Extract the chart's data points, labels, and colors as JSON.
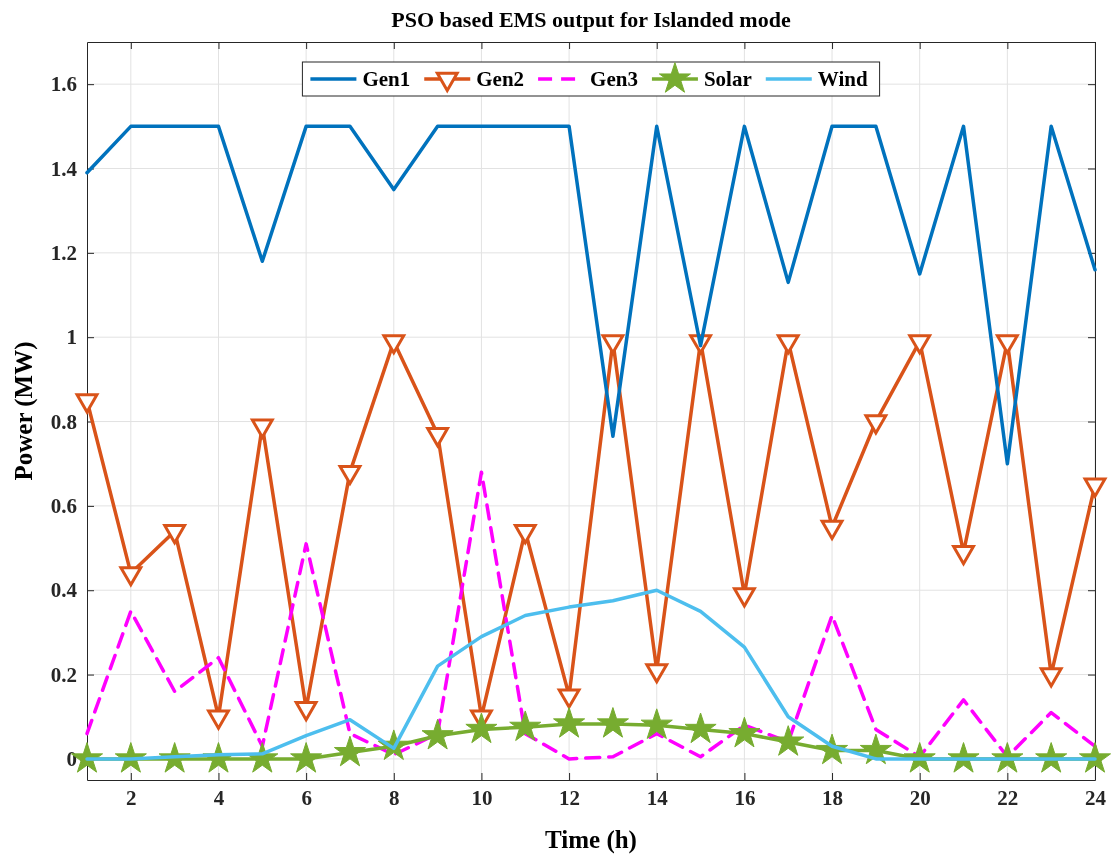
{
  "chart_data": {
    "type": "line",
    "title": "PSO based EMS output for Islanded mode",
    "xlabel": "Time (h)",
    "ylabel": "Power (MW)",
    "x": [
      1,
      2,
      3,
      4,
      5,
      6,
      7,
      8,
      9,
      10,
      11,
      12,
      13,
      14,
      15,
      16,
      17,
      18,
      19,
      20,
      21,
      22,
      23,
      24
    ],
    "xlim": [
      1,
      24
    ],
    "xticks": [
      2,
      4,
      6,
      8,
      10,
      12,
      14,
      16,
      18,
      20,
      22,
      24
    ],
    "ylim": [
      -0.05,
      1.7
    ],
    "yticks": [
      0,
      0.2,
      0.4,
      0.6,
      0.8,
      {
        "value": 1,
        "label": "1"
      },
      1.2,
      1.4,
      1.6
    ],
    "grid": true,
    "legend": "top",
    "series": [
      {
        "name": "Gen1",
        "color": "#0072bd",
        "marker": "none",
        "line_style": "solid",
        "values": [
          1.39,
          1.5,
          1.5,
          1.5,
          1.18,
          1.5,
          1.5,
          1.35,
          1.5,
          1.5,
          1.5,
          1.5,
          0.765,
          1.5,
          0.98,
          1.5,
          1.13,
          1.5,
          1.5,
          1.15,
          1.5,
          0.7,
          1.5,
          1.16
        ]
      },
      {
        "name": "Gen2",
        "color": "#d95319",
        "marker": "triangle",
        "line_style": "solid",
        "values": [
          0.85,
          0.44,
          0.54,
          0.1,
          0.79,
          0.12,
          0.68,
          0.99,
          0.77,
          0.1,
          0.54,
          0.15,
          0.99,
          0.21,
          0.99,
          0.39,
          0.99,
          0.55,
          0.8,
          0.99,
          0.49,
          0.99,
          0.2,
          0.65
        ]
      },
      {
        "name": "Gen3",
        "color": "#ff00ff",
        "marker": "none",
        "line_style": "dashed",
        "values": [
          0.06,
          0.35,
          0.16,
          0.24,
          0.03,
          0.51,
          0.06,
          0.01,
          0.06,
          0.68,
          0.06,
          0,
          0.005,
          0.06,
          0.005,
          0.08,
          0.04,
          0.34,
          0.07,
          0.005,
          0.14,
          0.005,
          0.11,
          0.03
        ]
      },
      {
        "name": "Solar",
        "color": "#77ac30",
        "marker": "star",
        "line_style": "solid",
        "values": [
          0,
          0,
          0,
          0,
          0,
          0,
          0.015,
          0.03,
          0.055,
          0.07,
          0.075,
          0.083,
          0.083,
          0.08,
          0.07,
          0.06,
          0.04,
          0.02,
          0.02,
          0,
          0,
          0,
          0,
          0
        ]
      },
      {
        "name": "Wind",
        "color": "#4dbeee",
        "marker": "none",
        "line_style": "solid",
        "values": [
          0,
          0,
          0.005,
          0.01,
          0.012,
          0.055,
          0.093,
          0.025,
          0.22,
          0.29,
          0.34,
          0.36,
          0.375,
          0.4,
          0.35,
          0.265,
          0.1,
          0.03,
          0,
          0,
          0,
          0,
          0,
          0
        ]
      }
    ]
  }
}
